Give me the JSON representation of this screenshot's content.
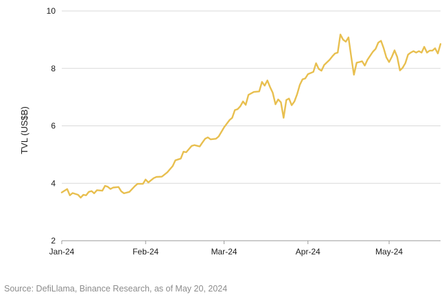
{
  "chart_data": {
    "type": "line",
    "ylabel": "TVL (US$B)",
    "ylim": [
      2,
      10
    ],
    "yticks": [
      2,
      4,
      6,
      8,
      10
    ],
    "xlim": [
      "2024-01-01",
      "2024-05-20"
    ],
    "xticks": [
      {
        "date": "2024-01-01",
        "label": "Jan-24"
      },
      {
        "date": "2024-02-01",
        "label": "Feb-24"
      },
      {
        "date": "2024-03-01",
        "label": "Mar-24"
      },
      {
        "date": "2024-04-01",
        "label": "Apr-24"
      },
      {
        "date": "2024-05-01",
        "label": "May-24"
      }
    ],
    "grid": "horizontal",
    "color": "#E8BF4F",
    "series": [
      {
        "points": [
          [
            "2024-01-01",
            3.68
          ],
          [
            "2024-01-03",
            3.8
          ],
          [
            "2024-01-04",
            3.58
          ],
          [
            "2024-01-05",
            3.66
          ],
          [
            "2024-01-07",
            3.6
          ],
          [
            "2024-01-08",
            3.5
          ],
          [
            "2024-01-09",
            3.6
          ],
          [
            "2024-01-10",
            3.58
          ],
          [
            "2024-01-11",
            3.7
          ],
          [
            "2024-01-12",
            3.73
          ],
          [
            "2024-01-13",
            3.65
          ],
          [
            "2024-01-14",
            3.76
          ],
          [
            "2024-01-16",
            3.74
          ],
          [
            "2024-01-17",
            3.91
          ],
          [
            "2024-01-18",
            3.88
          ],
          [
            "2024-01-19",
            3.8
          ],
          [
            "2024-01-20",
            3.85
          ],
          [
            "2024-01-22",
            3.87
          ],
          [
            "2024-01-23",
            3.72
          ],
          [
            "2024-01-24",
            3.65
          ],
          [
            "2024-01-26",
            3.7
          ],
          [
            "2024-01-28",
            3.9
          ],
          [
            "2024-01-29",
            3.98
          ],
          [
            "2024-01-31",
            3.98
          ],
          [
            "2024-02-01",
            4.13
          ],
          [
            "2024-02-02",
            4.03
          ],
          [
            "2024-02-04",
            4.18
          ],
          [
            "2024-02-05",
            4.22
          ],
          [
            "2024-02-07",
            4.23
          ],
          [
            "2024-02-09",
            4.38
          ],
          [
            "2024-02-11",
            4.6
          ],
          [
            "2024-02-12",
            4.8
          ],
          [
            "2024-02-14",
            4.86
          ],
          [
            "2024-02-15",
            5.1
          ],
          [
            "2024-02-16",
            5.08
          ],
          [
            "2024-02-18",
            5.3
          ],
          [
            "2024-02-19",
            5.33
          ],
          [
            "2024-02-21",
            5.28
          ],
          [
            "2024-02-22",
            5.42
          ],
          [
            "2024-02-23",
            5.55
          ],
          [
            "2024-02-24",
            5.6
          ],
          [
            "2024-02-25",
            5.53
          ],
          [
            "2024-02-27",
            5.55
          ],
          [
            "2024-02-28",
            5.63
          ],
          [
            "2024-03-01",
            5.95
          ],
          [
            "2024-03-03",
            6.2
          ],
          [
            "2024-03-04",
            6.28
          ],
          [
            "2024-03-05",
            6.55
          ],
          [
            "2024-03-06",
            6.58
          ],
          [
            "2024-03-07",
            6.68
          ],
          [
            "2024-03-08",
            6.85
          ],
          [
            "2024-03-09",
            6.73
          ],
          [
            "2024-03-10",
            7.08
          ],
          [
            "2024-03-12",
            7.18
          ],
          [
            "2024-03-14",
            7.2
          ],
          [
            "2024-03-15",
            7.53
          ],
          [
            "2024-03-16",
            7.4
          ],
          [
            "2024-03-17",
            7.58
          ],
          [
            "2024-03-18",
            7.35
          ],
          [
            "2024-03-19",
            7.15
          ],
          [
            "2024-03-20",
            6.75
          ],
          [
            "2024-03-21",
            6.92
          ],
          [
            "2024-03-22",
            6.82
          ],
          [
            "2024-03-23",
            6.28
          ],
          [
            "2024-03-24",
            6.9
          ],
          [
            "2024-03-25",
            6.95
          ],
          [
            "2024-03-26",
            6.72
          ],
          [
            "2024-03-27",
            6.85
          ],
          [
            "2024-03-28",
            7.1
          ],
          [
            "2024-03-29",
            7.43
          ],
          [
            "2024-03-30",
            7.62
          ],
          [
            "2024-03-31",
            7.65
          ],
          [
            "2024-04-01",
            7.8
          ],
          [
            "2024-04-03",
            7.88
          ],
          [
            "2024-04-04",
            8.18
          ],
          [
            "2024-04-05",
            7.98
          ],
          [
            "2024-04-06",
            7.92
          ],
          [
            "2024-04-07",
            8.12
          ],
          [
            "2024-04-09",
            8.3
          ],
          [
            "2024-04-10",
            8.42
          ],
          [
            "2024-04-11",
            8.52
          ],
          [
            "2024-04-12",
            8.55
          ],
          [
            "2024-04-13",
            9.18
          ],
          [
            "2024-04-14",
            9.0
          ],
          [
            "2024-04-15",
            8.93
          ],
          [
            "2024-04-16",
            9.08
          ],
          [
            "2024-04-17",
            8.4
          ],
          [
            "2024-04-18",
            7.78
          ],
          [
            "2024-04-19",
            8.2
          ],
          [
            "2024-04-20",
            8.22
          ],
          [
            "2024-04-21",
            8.25
          ],
          [
            "2024-04-22",
            8.1
          ],
          [
            "2024-04-23",
            8.3
          ],
          [
            "2024-04-25",
            8.58
          ],
          [
            "2024-04-26",
            8.68
          ],
          [
            "2024-04-27",
            8.9
          ],
          [
            "2024-04-28",
            8.96
          ],
          [
            "2024-04-29",
            8.7
          ],
          [
            "2024-04-30",
            8.38
          ],
          [
            "2024-05-01",
            8.22
          ],
          [
            "2024-05-02",
            8.4
          ],
          [
            "2024-05-03",
            8.63
          ],
          [
            "2024-05-04",
            8.4
          ],
          [
            "2024-05-05",
            7.93
          ],
          [
            "2024-05-06",
            8.02
          ],
          [
            "2024-05-07",
            8.18
          ],
          [
            "2024-05-08",
            8.48
          ],
          [
            "2024-05-09",
            8.55
          ],
          [
            "2024-05-10",
            8.6
          ],
          [
            "2024-05-11",
            8.55
          ],
          [
            "2024-05-12",
            8.6
          ],
          [
            "2024-05-13",
            8.55
          ],
          [
            "2024-05-14",
            8.75
          ],
          [
            "2024-05-15",
            8.55
          ],
          [
            "2024-05-16",
            8.62
          ],
          [
            "2024-05-17",
            8.62
          ],
          [
            "2024-05-18",
            8.7
          ],
          [
            "2024-05-19",
            8.52
          ],
          [
            "2024-05-20",
            8.85
          ]
        ]
      }
    ]
  },
  "source": "Source: DefiLlama, Binance Research, as of May 20, 2024"
}
